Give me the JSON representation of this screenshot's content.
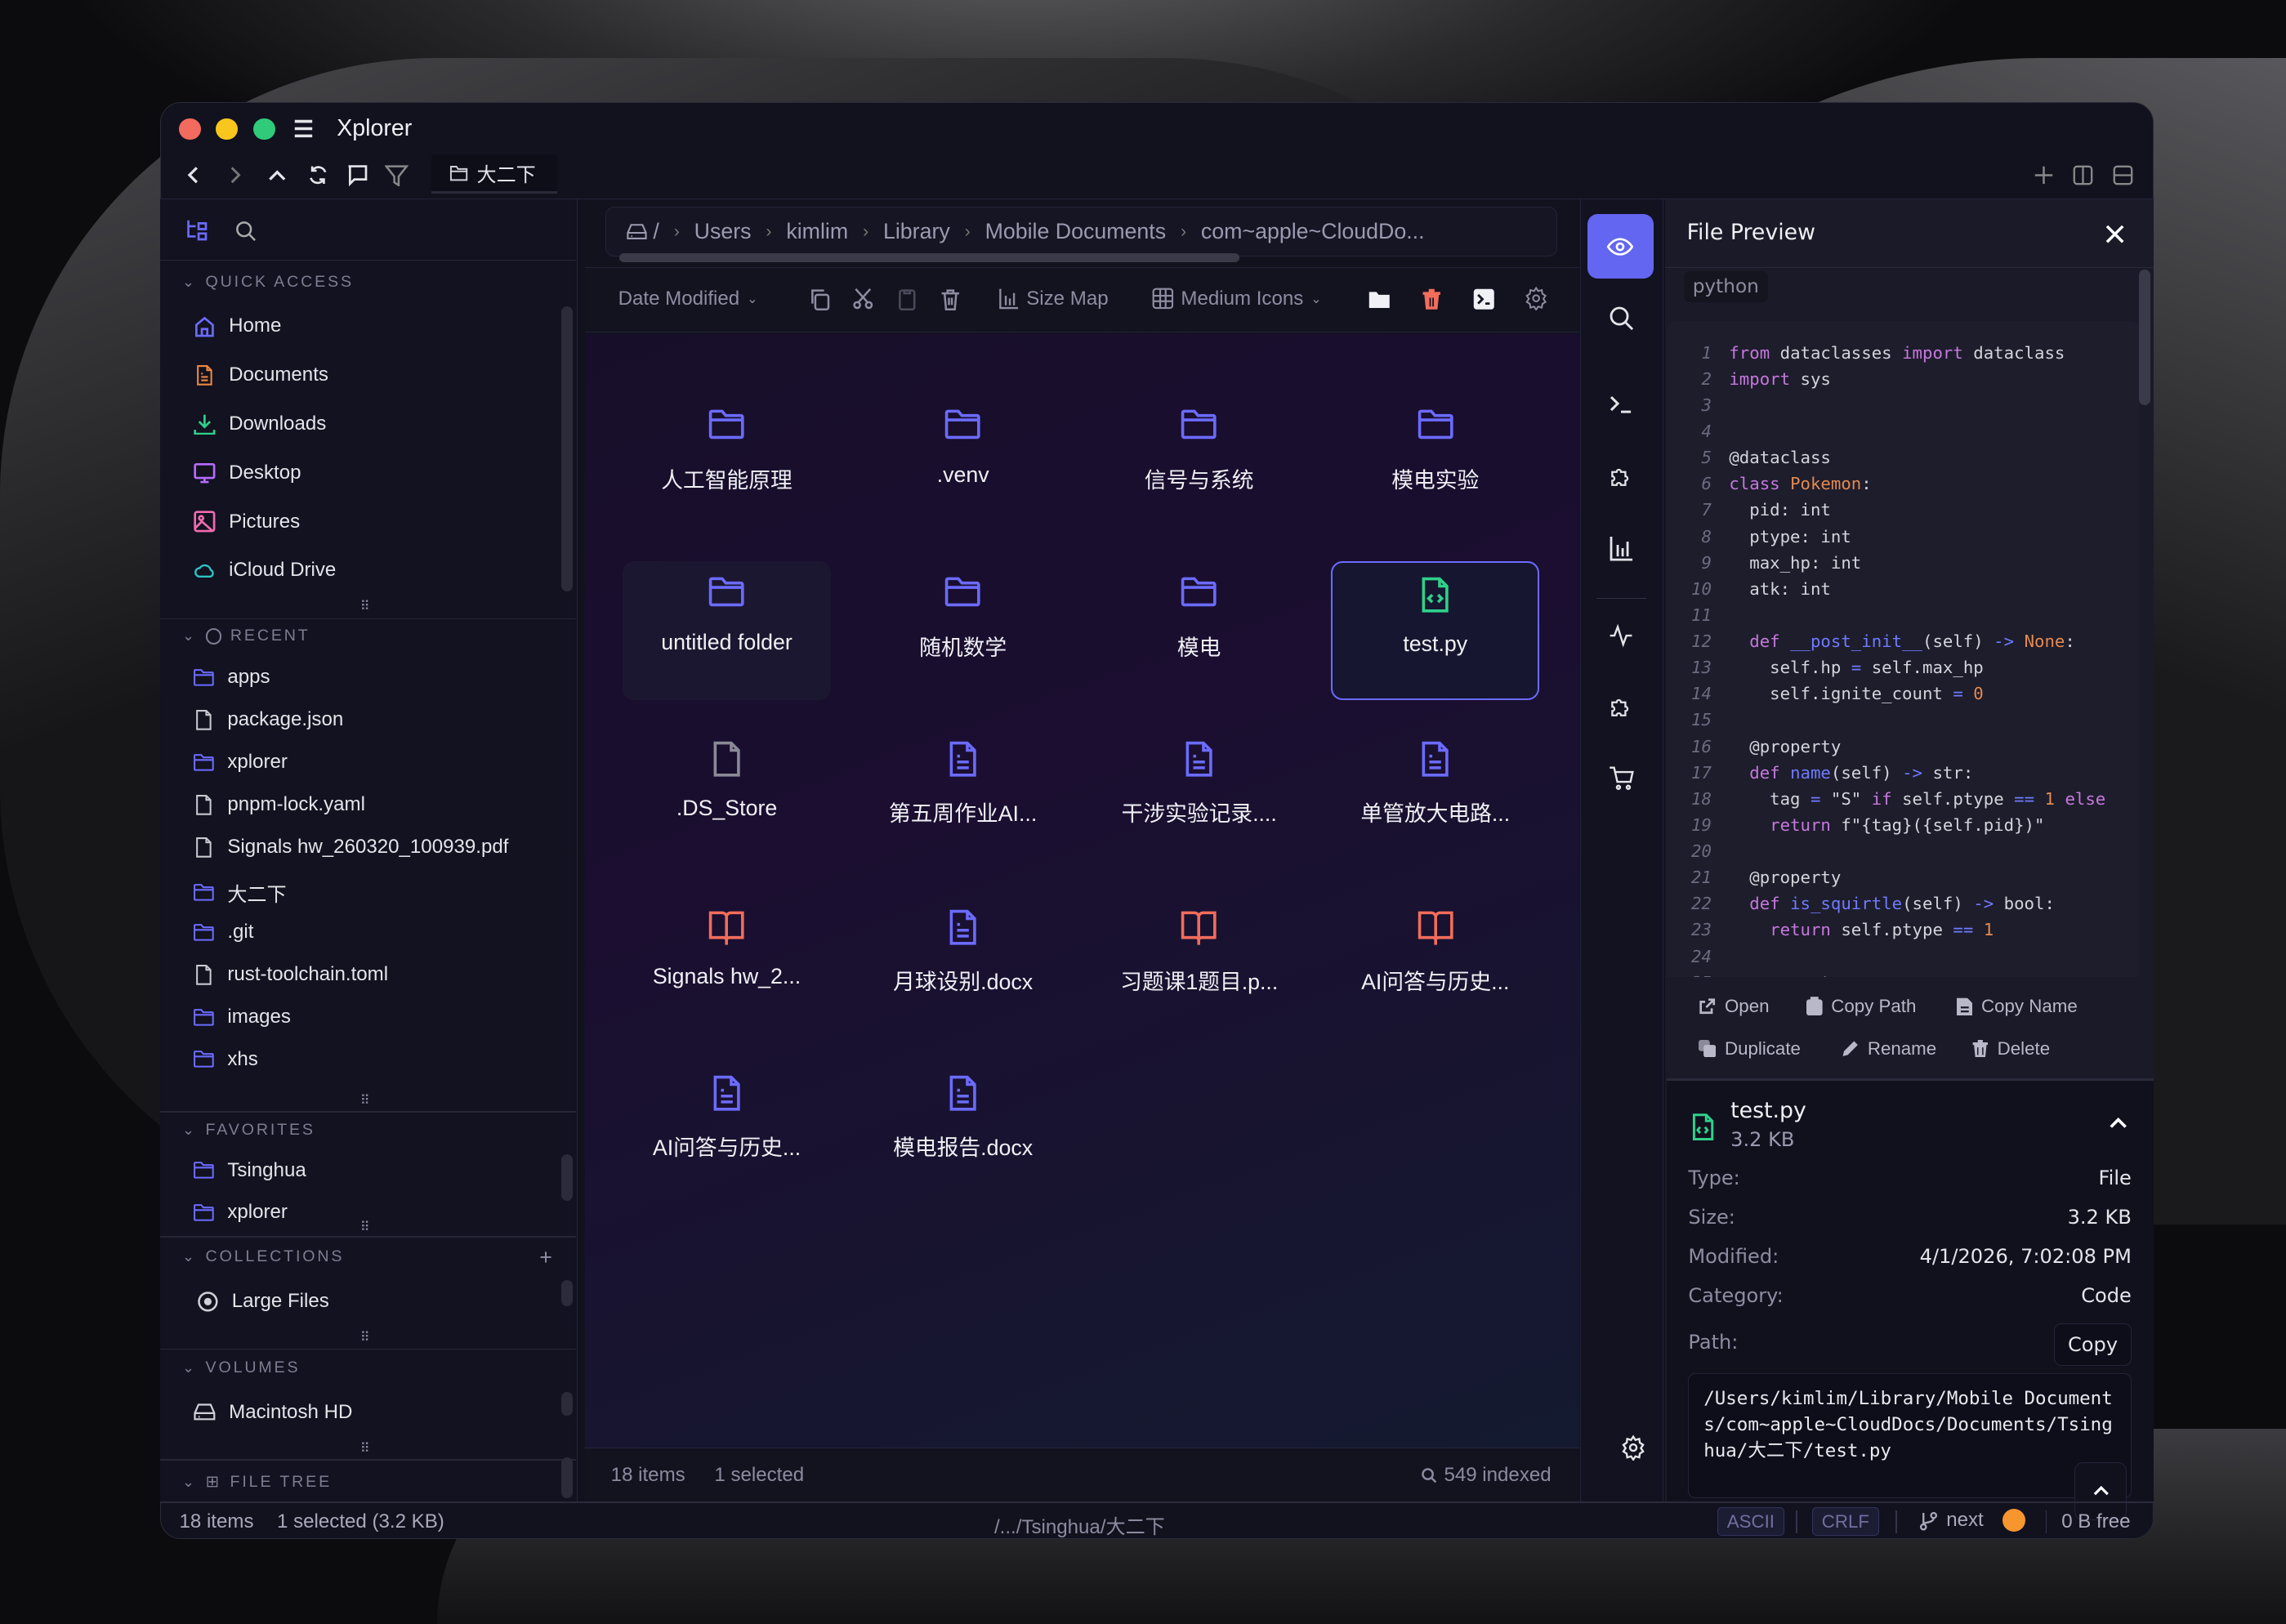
{
  "app": {
    "title": "Xplorer",
    "active_tab": "大二下"
  },
  "colors": {
    "accent": "#6366f1",
    "folder": "#6b6bff",
    "doc": "#6b6bff",
    "pdf": "#f26d5b",
    "code": "#2fd18a",
    "danger": "#f26d5b",
    "traffic": [
      "#f36b5e",
      "#f8c61c",
      "#2fcb7a"
    ]
  },
  "sidebar": {
    "quick_access": {
      "title": "QUICK ACCESS",
      "items": [
        {
          "label": "Home",
          "icon": "home",
          "color": "#6b6bff"
        },
        {
          "label": "Documents",
          "icon": "doc",
          "color": "#f0883e"
        },
        {
          "label": "Downloads",
          "icon": "download",
          "color": "#2fd18a"
        },
        {
          "label": "Desktop",
          "icon": "monitor",
          "color": "#b66bff"
        },
        {
          "label": "Pictures",
          "icon": "image",
          "color": "#f06bb0"
        },
        {
          "label": "iCloud Drive",
          "icon": "cloud",
          "color": "#2ec4c4"
        }
      ]
    },
    "recent": {
      "title": "RECENT",
      "items": [
        {
          "label": "apps",
          "icon": "folder"
        },
        {
          "label": "package.json",
          "icon": "file"
        },
        {
          "label": "xplorer",
          "icon": "folder"
        },
        {
          "label": "pnpm-lock.yaml",
          "icon": "file"
        },
        {
          "label": "Signals hw_260320_100939.pdf",
          "icon": "file"
        },
        {
          "label": "大二下",
          "icon": "folder"
        },
        {
          "label": ".git",
          "icon": "folder"
        },
        {
          "label": "rust-toolchain.toml",
          "icon": "file"
        },
        {
          "label": "images",
          "icon": "folder"
        },
        {
          "label": "xhs",
          "icon": "folder"
        }
      ]
    },
    "favorites": {
      "title": "FAVORITES",
      "items": [
        {
          "label": "Tsinghua",
          "icon": "folder"
        },
        {
          "label": "xplorer",
          "icon": "folder"
        }
      ]
    },
    "collections": {
      "title": "COLLECTIONS",
      "items": [
        {
          "label": "Large Files",
          "icon": "target"
        }
      ]
    },
    "volumes": {
      "title": "VOLUMES",
      "items": [
        {
          "label": "Macintosh HD",
          "icon": "drive"
        }
      ]
    },
    "file_tree": {
      "title": "FILE TREE"
    }
  },
  "breadcrumb": {
    "root": "/",
    "items": [
      "Users",
      "kimlim",
      "Library",
      "Mobile Documents",
      "com~apple~CloudDo..."
    ]
  },
  "toolbar": {
    "sort": "Date Modified",
    "size_map": "Size Map",
    "view": "Medium Icons"
  },
  "files": [
    {
      "name": "人工智能原理",
      "icon": "folder"
    },
    {
      "name": ".venv",
      "icon": "folder"
    },
    {
      "name": "信号与系统",
      "icon": "folder"
    },
    {
      "name": "模电实验",
      "icon": "folder"
    },
    {
      "name": "untitled folder",
      "icon": "folder",
      "hover": true
    },
    {
      "name": "随机数学",
      "icon": "folder"
    },
    {
      "name": "模电",
      "icon": "folder"
    },
    {
      "name": "test.py",
      "icon": "code",
      "selected": true
    },
    {
      "name": ".DS_Store",
      "icon": "file"
    },
    {
      "name": "第五周作业AI...",
      "icon": "doc"
    },
    {
      "name": "干涉实验记录....",
      "icon": "doc"
    },
    {
      "name": "单管放大电路...",
      "icon": "doc"
    },
    {
      "name": "Signals hw_2...",
      "icon": "book"
    },
    {
      "name": "月球设别.docx",
      "icon": "doc"
    },
    {
      "name": "习题课1题目.p...",
      "icon": "book"
    },
    {
      "name": "AI问答与历史...",
      "icon": "book"
    },
    {
      "name": "AI问答与历史...",
      "icon": "doc"
    },
    {
      "name": "模电报告.docx",
      "icon": "doc"
    }
  ],
  "main_footer": {
    "items": "18 items",
    "selected": "1 selected",
    "indexed": "549 indexed"
  },
  "preview": {
    "title": "File Preview",
    "language": "python",
    "code": [
      [
        [
          "from ",
          "k"
        ],
        [
          "dataclasses ",
          "t"
        ],
        [
          "import ",
          "k"
        ],
        [
          "dataclass",
          "t"
        ]
      ],
      [
        [
          "import ",
          "k"
        ],
        [
          "sys",
          "t"
        ]
      ],
      [],
      [],
      [
        [
          "@dataclass",
          "t"
        ]
      ],
      [
        [
          "class ",
          "k"
        ],
        [
          "Pokemon",
          "c"
        ],
        [
          ":",
          "t"
        ]
      ],
      [
        [
          "  pid: int",
          "t"
        ]
      ],
      [
        [
          "  ptype: int",
          "t"
        ]
      ],
      [
        [
          "  max_hp: int",
          "t"
        ]
      ],
      [
        [
          "  atk: int",
          "t"
        ]
      ],
      [],
      [
        [
          "  def ",
          "k"
        ],
        [
          "__post_init__",
          "f"
        ],
        [
          "(self) ",
          "t"
        ],
        [
          "->",
          "o"
        ],
        [
          " ",
          "t"
        ],
        [
          "None",
          "c"
        ],
        [
          ":",
          "t"
        ]
      ],
      [
        [
          "    self.hp ",
          "t"
        ],
        [
          "=",
          "o"
        ],
        [
          " self.max_hp",
          "t"
        ]
      ],
      [
        [
          "    self.ignite_count ",
          "t"
        ],
        [
          "=",
          "o"
        ],
        [
          " ",
          "t"
        ],
        [
          "0",
          "n"
        ]
      ],
      [],
      [
        [
          "  @property",
          "t"
        ]
      ],
      [
        [
          "  def ",
          "k"
        ],
        [
          "name",
          "f"
        ],
        [
          "(self) ",
          "t"
        ],
        [
          "->",
          "o"
        ],
        [
          " str:",
          "t"
        ]
      ],
      [
        [
          "    tag ",
          "t"
        ],
        [
          "=",
          "o"
        ],
        [
          " \"S\" ",
          "t"
        ],
        [
          "if",
          "k"
        ],
        [
          " self.ptype ",
          "t"
        ],
        [
          "==",
          "o"
        ],
        [
          " ",
          "t"
        ],
        [
          "1",
          "n"
        ],
        [
          " ",
          "t"
        ],
        [
          "else",
          "k"
        ]
      ],
      [
        [
          "    ",
          "t"
        ],
        [
          "return",
          "k"
        ],
        [
          " f\"{tag}({self.pid})\"",
          "t"
        ]
      ],
      [],
      [
        [
          "  @property",
          "t"
        ]
      ],
      [
        [
          "  def ",
          "k"
        ],
        [
          "is_squirtle",
          "f"
        ],
        [
          "(self) ",
          "t"
        ],
        [
          "->",
          "o"
        ],
        [
          " bool:",
          "t"
        ]
      ],
      [
        [
          "    ",
          "t"
        ],
        [
          "return",
          "k"
        ],
        [
          " self.ptype ",
          "t"
        ],
        [
          "==",
          "o"
        ],
        [
          " ",
          "t"
        ],
        [
          "1",
          "n"
        ]
      ],
      [],
      [
        [
          "  @property",
          "t"
        ]
      ]
    ],
    "actions": [
      "Open",
      "Copy Path",
      "Copy Name",
      "Duplicate",
      "Rename",
      "Delete"
    ],
    "file": {
      "name": "test.py",
      "size": "3.2 KB"
    },
    "details": [
      {
        "label": "Type:",
        "value": "File"
      },
      {
        "label": "Size:",
        "value": "3.2 KB"
      },
      {
        "label": "Modified:",
        "value": "4/1/2026, 7:02:08 PM"
      },
      {
        "label": "Category:",
        "value": "Code"
      }
    ],
    "path_label": "Path:",
    "copy_label": "Copy",
    "path": "/Users/kimlim/Library/Mobile Documents/com~apple~CloudDocs/Documents/Tsinghua/大二下/test.py"
  },
  "statusbar": {
    "items": "18 items",
    "selected": "1 selected (3.2 KB)",
    "path": "/.../Tsinghua/大二下",
    "encoding": "ASCII",
    "line_ending": "CRLF",
    "branch": "next",
    "free": "0 B free"
  }
}
